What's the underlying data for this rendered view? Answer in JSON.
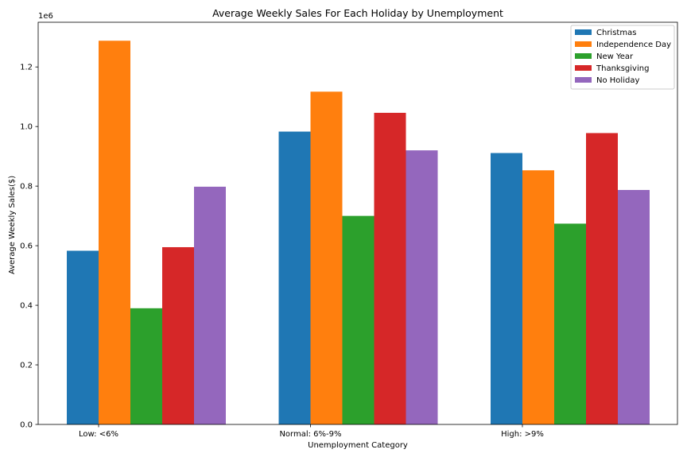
{
  "chart_data": {
    "type": "bar",
    "title": "Average Weekly Sales For Each Holiday by Unemployment",
    "xlabel": "Unemployment Category",
    "ylabel": "Average Weekly Sales($)",
    "y_scale_label": "1e6",
    "categories": [
      "Low: <6%",
      "Normal: 6%-9%",
      "High: >9%"
    ],
    "ylim": [
      0,
      1350000
    ],
    "yticks": [
      0,
      200000,
      400000,
      600000,
      800000,
      1000000,
      1200000
    ],
    "ytick_labels": [
      "0.0",
      "0.2",
      "0.4",
      "0.6",
      "0.8",
      "1.0",
      "1.2"
    ],
    "grid": false,
    "legend_position": "top-right",
    "series": [
      {
        "name": "Christmas",
        "color": "#1f77b4",
        "values": [
          583000,
          983000,
          911000
        ]
      },
      {
        "name": "Independence Day",
        "color": "#ff7f0e",
        "values": [
          1288000,
          1117000,
          853000
        ]
      },
      {
        "name": "New Year",
        "color": "#2ca02c",
        "values": [
          390000,
          700000,
          674000
        ]
      },
      {
        "name": "Thanksgiving",
        "color": "#d62728",
        "values": [
          595000,
          1046000,
          978000
        ]
      },
      {
        "name": "No Holiday",
        "color": "#9467bd",
        "values": [
          798000,
          920000,
          787000
        ]
      }
    ]
  }
}
